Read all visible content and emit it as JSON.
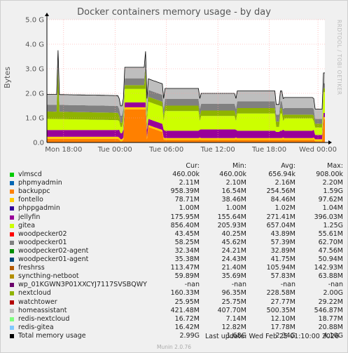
{
  "title": "Docker containers memory usage - by day",
  "side_text": "RRDTOOL / TOBI OETIKER",
  "munin_version": "Munin 2.0.76",
  "last_update": "Last update: Wed Feb 25 01:10:00 2026",
  "legend_headers": [
    "Cur:",
    "Min:",
    "Avg:",
    "Max:"
  ],
  "chart_data": {
    "type": "area",
    "title": "Docker containers memory usage - by day",
    "ylabel": "Bytes",
    "y_ticks": [
      "0.0",
      "1.0 G",
      "2.0 G",
      "3.0 G",
      "4.0 G",
      "5.0 G"
    ],
    "ylim": [
      0,
      5.0
    ],
    "x_ticks": [
      "Mon 18:00",
      "Tue 00:00",
      "Tue 06:00",
      "Tue 12:00",
      "Tue 18:00",
      "Wed 00:00"
    ],
    "grid": true,
    "stacked": true,
    "series": [
      {
        "name": "vlmscd",
        "color": "#00cc00",
        "cur": "460.00k",
        "min": "460.00k",
        "avg": "656.94k",
        "max": "908.00k"
      },
      {
        "name": "phpmyadmin",
        "color": "#0066b3",
        "cur": "2.11M",
        "min": "2.10M",
        "avg": "2.16M",
        "max": "2.20M"
      },
      {
        "name": "backuppc",
        "color": "#ff8000",
        "cur": "958.39M",
        "min": "16.54M",
        "avg": "254.56M",
        "max": "1.59G"
      },
      {
        "name": "fontello",
        "color": "#ffcc00",
        "cur": "78.71M",
        "min": "38.46M",
        "avg": "84.46M",
        "max": "97.62M"
      },
      {
        "name": "phppgadmin",
        "color": "#330099",
        "cur": "1.00M",
        "min": "1.00M",
        "avg": "1.02M",
        "max": "1.04M"
      },
      {
        "name": "jellyfin",
        "color": "#990099",
        "cur": "175.95M",
        "min": "155.64M",
        "avg": "271.41M",
        "max": "396.03M"
      },
      {
        "name": "gitea",
        "color": "#ccff00",
        "cur": "856.40M",
        "min": "205.93M",
        "avg": "657.04M",
        "max": "1.25G"
      },
      {
        "name": "woodpecker02",
        "color": "#ff0000",
        "cur": "43.45M",
        "min": "40.25M",
        "avg": "43.89M",
        "max": "55.61M"
      },
      {
        "name": "woodpecker01",
        "color": "#808080",
        "cur": "58.25M",
        "min": "45.62M",
        "avg": "57.39M",
        "max": "62.70M"
      },
      {
        "name": "woodpecker02-agent",
        "color": "#008f00",
        "cur": "32.34M",
        "min": "24.21M",
        "avg": "32.89M",
        "max": "47.56M"
      },
      {
        "name": "woodpecker01-agent",
        "color": "#00487d",
        "cur": "35.38M",
        "min": "24.43M",
        "avg": "41.75M",
        "max": "50.94M"
      },
      {
        "name": "freshrss",
        "color": "#b35a00",
        "cur": "113.47M",
        "min": "21.40M",
        "avg": "105.94M",
        "max": "142.93M"
      },
      {
        "name": "syncthing-netboot",
        "color": "#b38f00",
        "cur": "59.89M",
        "min": "35.69M",
        "avg": "57.83M",
        "max": "63.88M"
      },
      {
        "name": "wp_01KGWN3P01XXCYJ7117SVSBQWY",
        "color": "#6b006b",
        "cur": "-nan",
        "min": "-nan",
        "avg": "-nan",
        "max": "-nan"
      },
      {
        "name": "nextcloud",
        "color": "#8fb300",
        "cur": "160.33M",
        "min": "96.35M",
        "avg": "228.58M",
        "max": "2.00G"
      },
      {
        "name": "watchtower",
        "color": "#b30000",
        "cur": "25.95M",
        "min": "25.75M",
        "avg": "27.77M",
        "max": "29.22M"
      },
      {
        "name": "homeassistant",
        "color": "#bebebe",
        "cur": "421.48M",
        "min": "407.70M",
        "avg": "500.35M",
        "max": "546.87M"
      },
      {
        "name": "redis-nextcloud",
        "color": "#80ff80",
        "cur": "16.72M",
        "min": "7.14M",
        "avg": "12.10M",
        "max": "18.77M"
      },
      {
        "name": "redis-gitea",
        "color": "#80c9ff",
        "cur": "16.42M",
        "min": "12.82M",
        "avg": "17.78M",
        "max": "20.88M"
      },
      {
        "name": "Total memory usage",
        "color": "#000000",
        "cur": "2.99G",
        "min": "1.68G",
        "avg": "2.34G",
        "max": "4.10G"
      }
    ]
  }
}
